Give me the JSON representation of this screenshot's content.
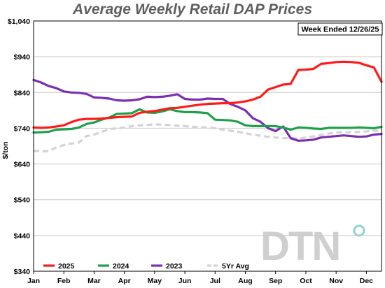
{
  "chart_data": {
    "type": "line",
    "title": "Average Weekly Retail DAP Prices",
    "annotation": "Week Ended 12/26/25",
    "ylabel": "$/ton",
    "xlabel": "",
    "ylim": [
      340,
      1040
    ],
    "yticks": [
      "$1,040",
      "$940",
      "$840",
      "$740",
      "$640",
      "$540",
      "$440",
      "$340"
    ],
    "ytick_values": [
      1040,
      940,
      840,
      740,
      640,
      540,
      440,
      340
    ],
    "xticks": [
      "Jan",
      "Feb",
      "Mar",
      "Apr",
      "May",
      "Jun",
      "Jul",
      "Aug",
      "Sep",
      "Oct",
      "Nov",
      "Dec"
    ],
    "grid": "horizontal",
    "legend_position": "bottom-left",
    "watermark": "DTN",
    "series": [
      {
        "name": "2025",
        "color": "#ff1a1a",
        "dash": "solid",
        "x": [
          0,
          0.25,
          0.5,
          0.75,
          1,
          1.25,
          1.5,
          1.75,
          2,
          2.25,
          2.5,
          2.75,
          3,
          3.25,
          3.5,
          3.75,
          4,
          4.25,
          4.5,
          4.75,
          5,
          5.25,
          5.5,
          5.75,
          6,
          6.25,
          6.5,
          6.75,
          7,
          7.25,
          7.5,
          7.75,
          8,
          8.25,
          8.5,
          8.75,
          9,
          9.25,
          9.5,
          9.75,
          10,
          10.25,
          10.5,
          10.75,
          11,
          11.25,
          11.5
        ],
        "values": [
          742,
          741,
          742,
          745,
          748,
          757,
          764,
          766,
          766,
          767,
          769,
          771,
          772,
          773,
          783,
          786,
          788,
          792,
          796,
          797,
          800,
          803,
          806,
          808,
          809,
          810,
          810,
          812,
          815,
          820,
          828,
          848,
          855,
          862,
          864,
          903,
          904,
          906,
          920,
          922,
          925,
          926,
          925,
          923,
          916,
          910,
          870
        ]
      },
      {
        "name": "2024",
        "color": "#1fa04a",
        "dash": "solid",
        "x": [
          0,
          0.25,
          0.5,
          0.75,
          1,
          1.25,
          1.5,
          1.75,
          2,
          2.25,
          2.5,
          2.75,
          3,
          3.25,
          3.5,
          3.75,
          4,
          4.25,
          4.5,
          4.75,
          5,
          5.25,
          5.5,
          5.75,
          6,
          6.25,
          6.5,
          6.75,
          7,
          7.25,
          7.5,
          7.75,
          8,
          8.25,
          8.5,
          8.75,
          9,
          9.25,
          9.5,
          9.75,
          10,
          10.25,
          10.5,
          10.75,
          11,
          11.25,
          11.5
        ],
        "values": [
          728,
          729,
          730,
          736,
          737,
          738,
          742,
          752,
          756,
          764,
          770,
          780,
          781,
          782,
          793,
          784,
          783,
          787,
          793,
          788,
          785,
          785,
          784,
          782,
          764,
          763,
          762,
          758,
          748,
          746,
          746,
          746,
          746,
          742,
          736,
          742,
          741,
          739,
          738,
          741,
          741,
          741,
          741,
          742,
          741,
          740,
          744
        ]
      },
      {
        "name": "2023",
        "color": "#7a2fb0",
        "dash": "solid",
        "x": [
          0,
          0.25,
          0.5,
          0.75,
          1,
          1.25,
          1.5,
          1.75,
          2,
          2.25,
          2.5,
          2.75,
          3,
          3.25,
          3.5,
          3.75,
          4,
          4.25,
          4.5,
          4.75,
          5,
          5.25,
          5.5,
          5.75,
          6,
          6.25,
          6.5,
          6.75,
          7,
          7.25,
          7.5,
          7.75,
          8,
          8.25,
          8.5,
          8.75,
          9,
          9.25,
          9.5,
          9.75,
          10,
          10.25,
          10.5,
          10.75,
          11,
          11.25,
          11.5
        ],
        "values": [
          875,
          868,
          858,
          852,
          843,
          840,
          839,
          836,
          826,
          825,
          823,
          818,
          817,
          818,
          821,
          828,
          827,
          828,
          831,
          835,
          822,
          820,
          820,
          823,
          822,
          822,
          808,
          800,
          790,
          768,
          758,
          740,
          732,
          745,
          712,
          705,
          706,
          708,
          714,
          716,
          718,
          720,
          718,
          716,
          717,
          722,
          724
        ]
      },
      {
        "name": "5Yr Avg",
        "color": "#d3d3d3",
        "dash": "dashed",
        "x": [
          0,
          0.25,
          0.5,
          0.75,
          1,
          1.25,
          1.5,
          1.75,
          2,
          2.25,
          2.5,
          2.75,
          3,
          3.25,
          3.5,
          3.75,
          4,
          4.25,
          4.5,
          4.75,
          5,
          5.25,
          5.5,
          5.75,
          6,
          6.25,
          6.5,
          6.75,
          7,
          7.25,
          7.5,
          7.75,
          8,
          8.25,
          8.5,
          8.75,
          9,
          9.25,
          9.5,
          9.75,
          10,
          10.25,
          10.5,
          10.75,
          11,
          11.25,
          11.5
        ],
        "values": [
          677,
          675,
          676,
          686,
          693,
          697,
          700,
          718,
          722,
          730,
          737,
          740,
          742,
          746,
          748,
          749,
          751,
          750,
          749,
          747,
          746,
          744,
          743,
          742,
          740,
          736,
          733,
          730,
          726,
          722,
          719,
          716,
          714,
          712,
          712,
          711,
          714,
          717,
          721,
          725,
          728,
          729,
          728,
          730,
          731,
          733,
          734
        ]
      }
    ]
  }
}
